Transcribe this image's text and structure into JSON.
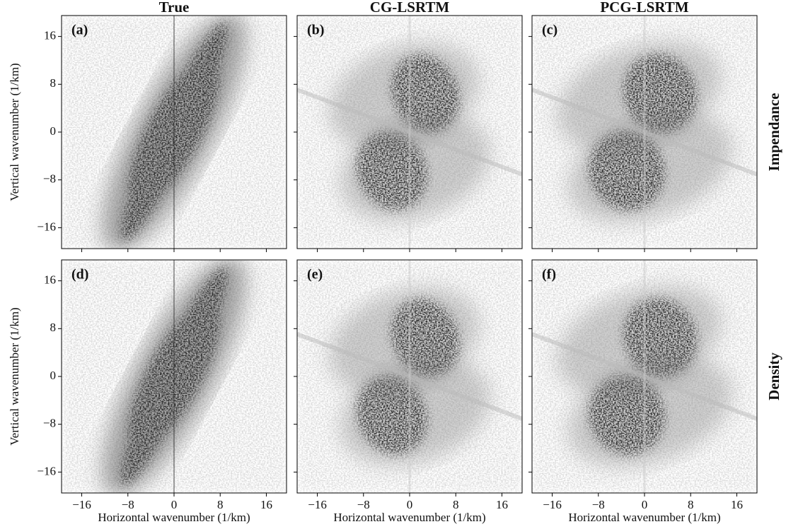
{
  "chart_data": [
    {
      "type": "heatmap",
      "label": "(a)",
      "title": "True",
      "y_label": "Vertical wavenumber (1/km)",
      "xlim": [
        -19.5,
        19.5
      ],
      "ylim": [
        -19.5,
        19.5
      ],
      "xticks": [
        {
          "value": -16,
          "label": "−16"
        },
        {
          "value": -8,
          "label": "−8"
        },
        0,
        8,
        16
      ],
      "yticks": [
        {
          "value": -16,
          "label": "−16"
        },
        {
          "value": -8,
          "label": "−8"
        },
        0,
        8,
        16
      ]
    },
    {
      "type": "heatmap",
      "label": "(b)",
      "title": "CG-LSRTM",
      "xlim": [
        -19.5,
        19.5
      ],
      "ylim": [
        -19.5,
        19.5
      ],
      "xticks": [
        {
          "value": -16,
          "label": "−16"
        },
        {
          "value": -8,
          "label": "−8"
        },
        0,
        8,
        16
      ],
      "yticks": [
        {
          "value": -16,
          "label": "−16"
        },
        {
          "value": -8,
          "label": "−8"
        },
        0,
        8,
        16
      ]
    },
    {
      "type": "heatmap",
      "label": "(c)",
      "title": "PCG-LSRTM",
      "row_label": "Impendance",
      "xlim": [
        -19.5,
        19.5
      ],
      "ylim": [
        -19.5,
        19.5
      ],
      "xticks": [
        {
          "value": -16,
          "label": "−16"
        },
        {
          "value": -8,
          "label": "−8"
        },
        0,
        8,
        16
      ],
      "yticks": [
        {
          "value": -16,
          "label": "−16"
        },
        {
          "value": -8,
          "label": "−8"
        },
        0,
        8,
        16
      ]
    },
    {
      "type": "heatmap",
      "label": "(d)",
      "y_label": "Vertical wavenumber (1/km)",
      "x_label": "Horizontal wavenumber (1/km)",
      "xlim": [
        -19.5,
        19.5
      ],
      "ylim": [
        -19.5,
        19.5
      ],
      "xticks": [
        {
          "value": -16,
          "label": "−16"
        },
        {
          "value": -8,
          "label": "−8"
        },
        0,
        8,
        16
      ],
      "yticks": [
        {
          "value": -16,
          "label": "−16"
        },
        {
          "value": -8,
          "label": "−8"
        },
        0,
        8,
        16
      ]
    },
    {
      "type": "heatmap",
      "label": "(e)",
      "x_label": "Horizontal wavenumber (1/km)",
      "xlim": [
        -19.5,
        19.5
      ],
      "ylim": [
        -19.5,
        19.5
      ],
      "xticks": [
        {
          "value": -16,
          "label": "−16"
        },
        {
          "value": -8,
          "label": "−8"
        },
        0,
        8,
        16
      ],
      "yticks": [
        {
          "value": -16,
          "label": "−16"
        },
        {
          "value": -8,
          "label": "−8"
        },
        0,
        8,
        16
      ]
    },
    {
      "type": "heatmap",
      "label": "(f)",
      "row_label": "Density",
      "x_label": "Horizontal wavenumber (1/km)",
      "xlim": [
        -19.5,
        19.5
      ],
      "ylim": [
        -19.5,
        19.5
      ],
      "xticks": [
        {
          "value": -16,
          "label": "−16"
        },
        {
          "value": -8,
          "label": "−8"
        },
        0,
        8,
        16
      ],
      "yticks": [
        {
          "value": -16,
          "label": "−16"
        },
        {
          "value": -8,
          "label": "−8"
        },
        0,
        8,
        16
      ]
    }
  ]
}
